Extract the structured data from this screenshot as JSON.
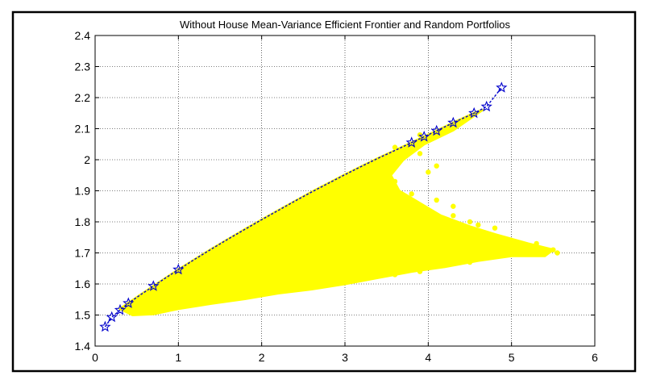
{
  "chart_data": {
    "type": "scatter",
    "title": "Without House Mean-Variance Efficient Frontier and Random Portfolios",
    "xlabel": "",
    "ylabel": "",
    "xlim": [
      0,
      6
    ],
    "ylim": [
      1.4,
      2.4
    ],
    "xticks": [
      "0",
      "1",
      "2",
      "3",
      "4",
      "5",
      "6"
    ],
    "yticks": [
      "1.4",
      "1.5",
      "1.6",
      "1.7",
      "1.8",
      "1.9",
      "2",
      "2.1",
      "2.2",
      "2.3",
      "2.4"
    ],
    "grid": true,
    "colors": {
      "random_portfolios": "#ffff00",
      "efficient_frontier": "#0000cc",
      "frame": "#000000",
      "grid": "#000000"
    },
    "series": [
      {
        "type": "scatter",
        "marker": "dot",
        "x": [
          0.55,
          0.7,
          0.9,
          1.2,
          1.5,
          1.8,
          2.1,
          2.4,
          2.7,
          3.0,
          3.3,
          3.6,
          3.9,
          4.2,
          4.5,
          4.8,
          5.1,
          5.4,
          5.55,
          0.6,
          1.0,
          1.4,
          1.8,
          2.2,
          2.6,
          3.0,
          3.4,
          3.8,
          4.2,
          4.6,
          5.0,
          5.3,
          0.8,
          1.2,
          1.6,
          2.0,
          2.4,
          2.8,
          3.2,
          3.6,
          4.0,
          4.4,
          4.8,
          1.0,
          1.5,
          2.0,
          2.5,
          3.0,
          3.5,
          4.0,
          4.5,
          1.3,
          1.8,
          2.3,
          2.8,
          3.3,
          3.8,
          4.3,
          1.6,
          2.1,
          2.6,
          3.1,
          3.6,
          4.1,
          2.0,
          2.5,
          3.0,
          3.5,
          4.0,
          2.4,
          2.9,
          3.4,
          3.9,
          2.8,
          3.3,
          3.8,
          3.2,
          3.6,
          3.9,
          4.1,
          4.3,
          4.6,
          4.9,
          5.2,
          5.5
        ],
        "y": [
          1.51,
          1.52,
          1.53,
          1.55,
          1.56,
          1.57,
          1.58,
          1.59,
          1.6,
          1.61,
          1.62,
          1.63,
          1.64,
          1.66,
          1.67,
          1.69,
          1.7,
          1.71,
          1.7,
          1.53,
          1.56,
          1.6,
          1.62,
          1.63,
          1.65,
          1.66,
          1.67,
          1.68,
          1.69,
          1.7,
          1.72,
          1.73,
          1.57,
          1.61,
          1.65,
          1.68,
          1.7,
          1.72,
          1.74,
          1.75,
          1.76,
          1.77,
          1.78,
          1.62,
          1.67,
          1.72,
          1.76,
          1.79,
          1.81,
          1.82,
          1.8,
          1.67,
          1.73,
          1.79,
          1.84,
          1.87,
          1.89,
          1.85,
          1.73,
          1.8,
          1.86,
          1.91,
          1.93,
          1.87,
          1.78,
          1.86,
          1.92,
          1.97,
          1.96,
          1.84,
          1.92,
          1.99,
          2.02,
          1.9,
          1.98,
          2.05,
          1.95,
          2.04,
          2.08,
          1.98,
          1.82,
          1.79,
          1.74,
          1.72,
          1.71
        ]
      },
      {
        "type": "line",
        "marker": "star",
        "x": [
          0.12,
          0.2,
          0.3,
          0.4,
          0.55,
          0.7,
          0.85,
          1.0,
          1.2,
          1.4,
          1.6,
          1.8,
          2.0,
          2.2,
          2.4,
          2.6,
          2.8,
          3.0,
          3.2,
          3.4,
          3.6,
          3.8,
          3.95,
          4.1,
          4.3,
          4.55,
          4.7,
          4.88
        ],
        "y": [
          1.462,
          1.493,
          1.516,
          1.538,
          1.566,
          1.593,
          1.62,
          1.646,
          1.68,
          1.713,
          1.745,
          1.776,
          1.807,
          1.837,
          1.867,
          1.896,
          1.924,
          1.952,
          1.979,
          2.005,
          2.03,
          2.055,
          2.074,
          2.093,
          2.119,
          2.15,
          2.171,
          2.232
        ]
      }
    ]
  }
}
